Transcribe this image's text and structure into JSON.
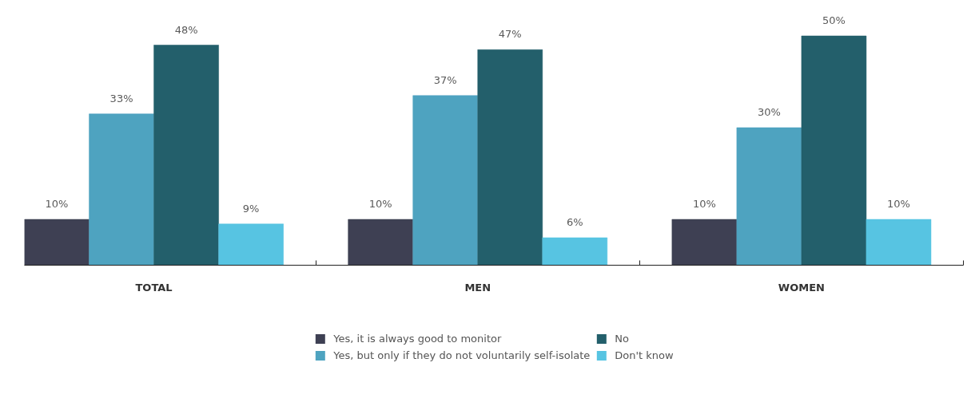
{
  "chart_data": {
    "type": "bar",
    "categories": [
      "TOTAL",
      "MEN",
      "WOMEN"
    ],
    "series": [
      {
        "name": "Yes, it is always good to monitor",
        "color": "#3e4053",
        "values": [
          10,
          10,
          10
        ],
        "value_labels": [
          "10%",
          "10%",
          "10%"
        ]
      },
      {
        "name": "Yes, but only if they do not voluntarily self-isolate",
        "color": "#4ea3c0",
        "values": [
          33,
          37,
          30
        ],
        "value_labels": [
          "33%",
          "37%",
          "30%"
        ]
      },
      {
        "name": "No",
        "color": "#235f6b",
        "values": [
          48,
          47,
          50
        ],
        "value_labels": [
          "48%",
          "47%",
          "50%"
        ]
      },
      {
        "name": "Don't know",
        "color": "#57c4e2",
        "values": [
          9,
          6,
          10
        ],
        "value_labels": [
          "9%",
          "6%",
          "10%"
        ]
      }
    ],
    "legend": "bottom",
    "grid": false,
    "tick_labels": "x"
  }
}
